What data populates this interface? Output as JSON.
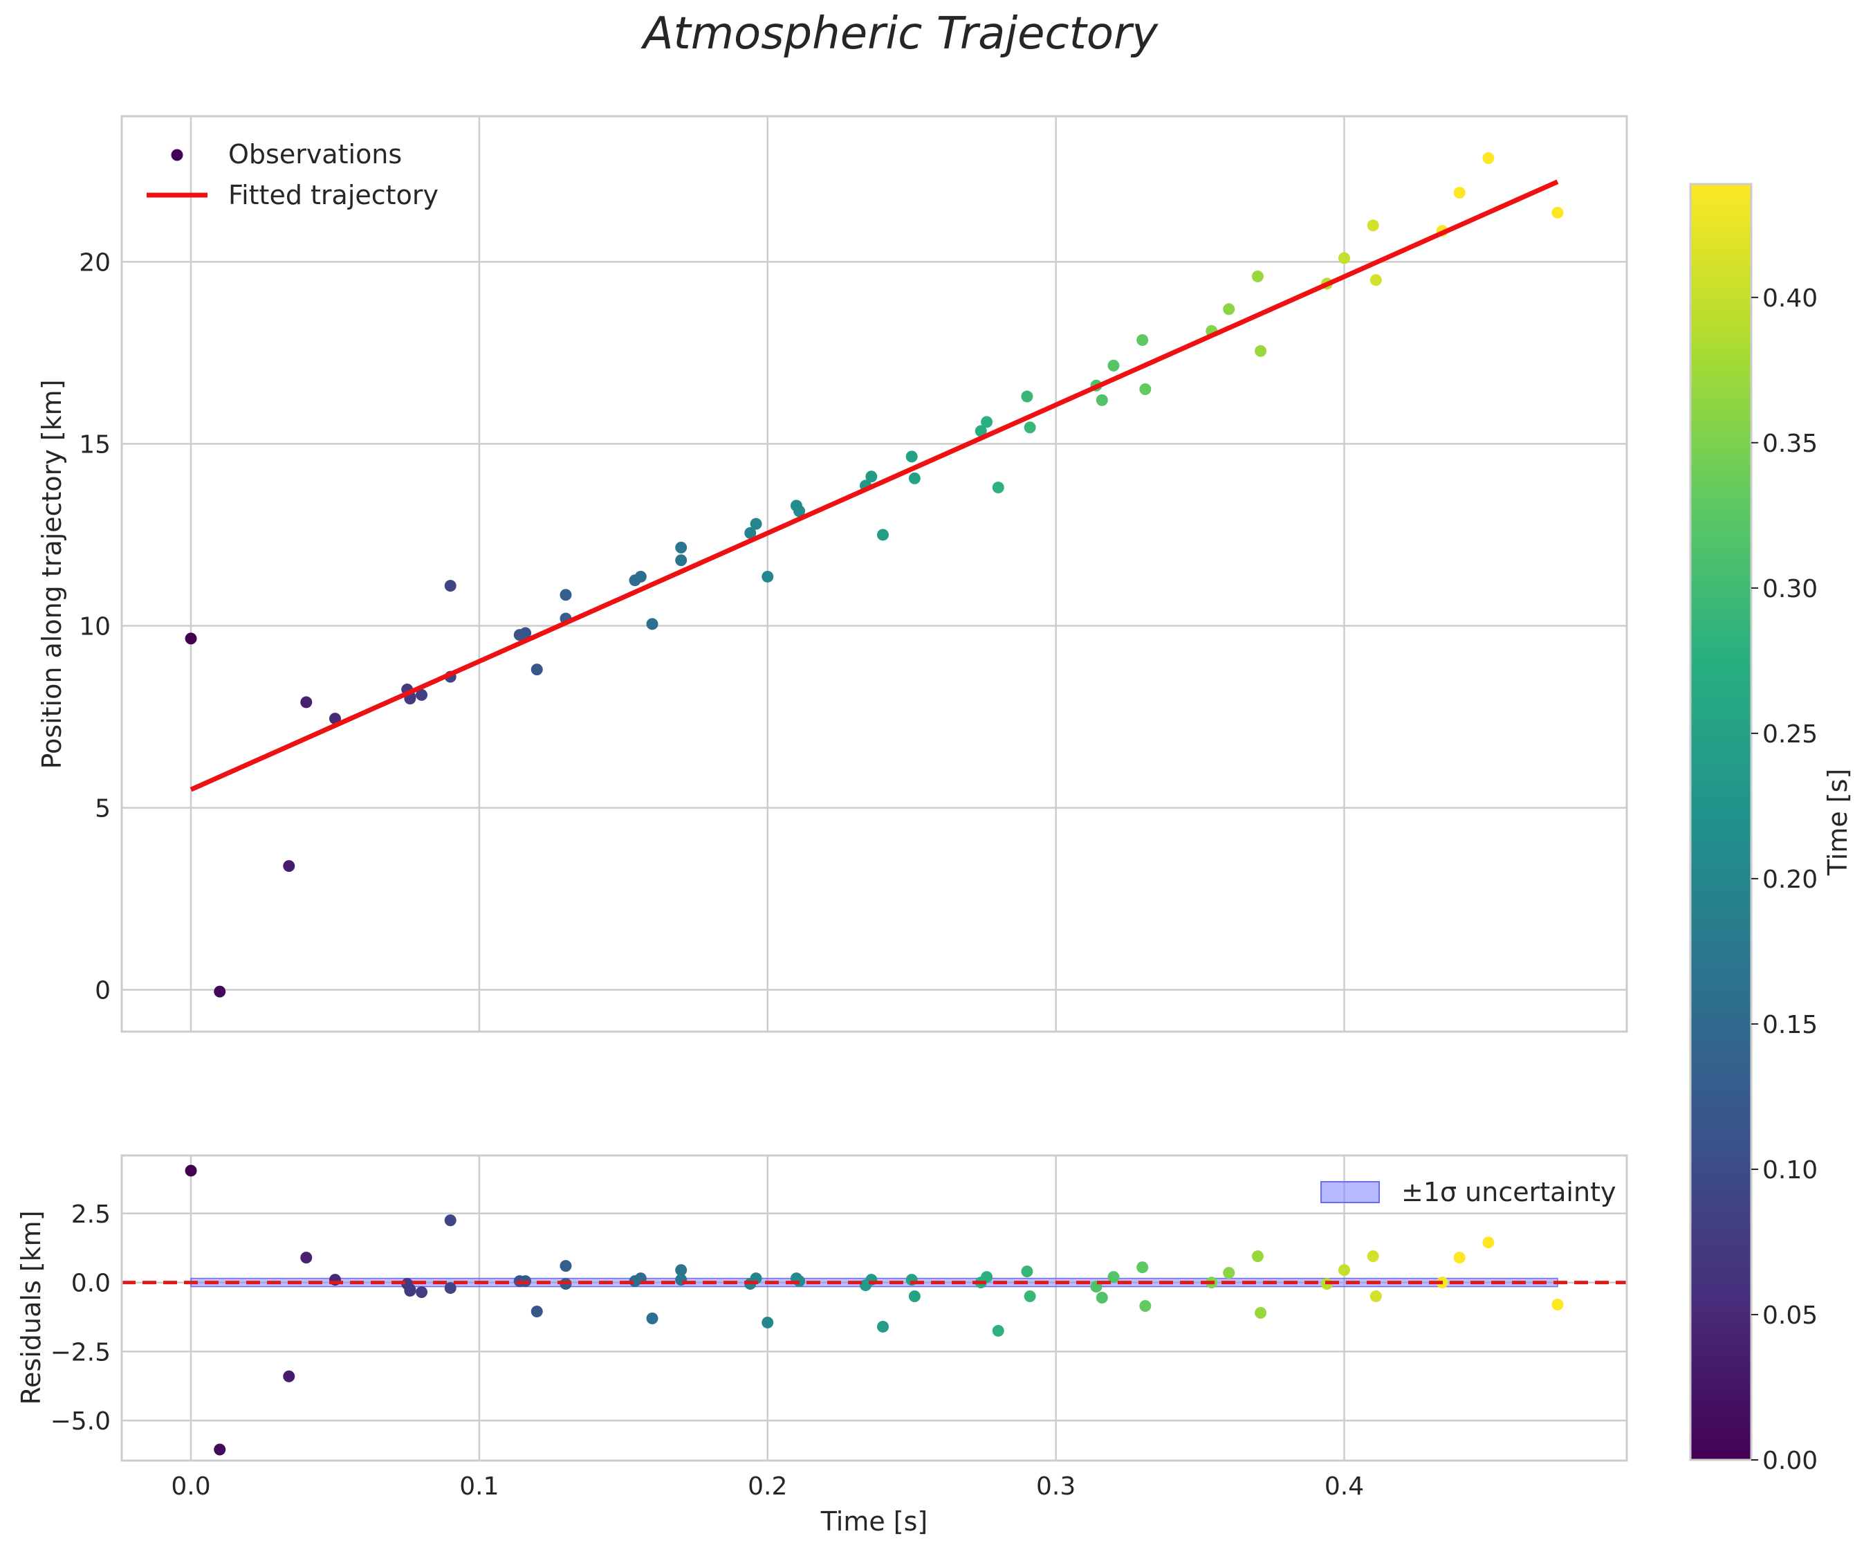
{
  "chart_data": {
    "type": "scatter",
    "title": "Atmospheric Trajectory",
    "colormap": "viridis",
    "observations": {
      "t": [
        0.0,
        0.01,
        0.034,
        0.04,
        0.05,
        0.075,
        0.076,
        0.076,
        0.08,
        0.09,
        0.09,
        0.114,
        0.116,
        0.12,
        0.13,
        0.13,
        0.154,
        0.156,
        0.16,
        0.17,
        0.17,
        0.194,
        0.196,
        0.2,
        0.21,
        0.211,
        0.234,
        0.236,
        0.24,
        0.25,
        0.251,
        0.274,
        0.276,
        0.28,
        0.29,
        0.291,
        0.314,
        0.316,
        0.32,
        0.33,
        0.331,
        0.354,
        0.36,
        0.37,
        0.371,
        0.394,
        0.4,
        0.41,
        0.411,
        0.434,
        0.44,
        0.45,
        0.474
      ],
      "position": [
        9.65,
        -0.05,
        3.4,
        7.9,
        7.45,
        8.25,
        8.05,
        8.0,
        8.1,
        11.1,
        8.6,
        9.75,
        9.8,
        8.8,
        10.85,
        10.2,
        11.25,
        11.35,
        10.05,
        12.15,
        11.8,
        12.55,
        12.8,
        11.35,
        13.3,
        13.15,
        13.85,
        14.1,
        12.5,
        14.65,
        14.05,
        15.35,
        15.6,
        13.8,
        16.3,
        15.45,
        16.6,
        16.2,
        17.15,
        17.85,
        16.5,
        18.1,
        18.7,
        19.6,
        17.55,
        19.4,
        20.1,
        21.0,
        19.5,
        20.85,
        21.9,
        22.85,
        21.35
      ],
      "residuals": [
        4.05,
        -6.05,
        -3.4,
        0.9,
        0.1,
        -0.05,
        -0.25,
        -0.3,
        -0.35,
        2.25,
        -0.2,
        0.05,
        0.05,
        -1.05,
        0.6,
        -0.05,
        0.05,
        0.15,
        -1.3,
        0.45,
        0.1,
        -0.05,
        0.15,
        -1.45,
        0.15,
        0.05,
        -0.1,
        0.1,
        -1.6,
        0.1,
        -0.5,
        0.0,
        0.2,
        -1.75,
        0.4,
        -0.5,
        -0.15,
        -0.55,
        0.2,
        0.55,
        -0.85,
        0.0,
        0.35,
        0.95,
        -1.1,
        -0.05,
        0.45,
        0.95,
        -0.5,
        0.0,
        0.9,
        1.45,
        -0.8
      ]
    },
    "fit_line": {
      "t": [
        0.0,
        0.474
      ],
      "position": [
        5.5,
        22.2
      ]
    },
    "top_panel": {
      "ylabel": "Position along trajectory [km]",
      "xlim": [
        -0.024,
        0.498
      ],
      "ylim": [
        -1.15,
        24.0
      ],
      "yticks": [
        0,
        5,
        10,
        15,
        20
      ],
      "ytick_labels": [
        "0",
        "5",
        "10",
        "15",
        "20"
      ],
      "legend": {
        "observations_label": "Observations",
        "fit_label": "Fitted trajectory",
        "location": "upper-left"
      }
    },
    "bottom_panel": {
      "ylabel": "Residuals [km]",
      "xlabel": "Time [s]",
      "xlim": [
        -0.024,
        0.498
      ],
      "ylim": [
        -6.45,
        4.6
      ],
      "yticks": [
        -5.0,
        -2.5,
        0.0,
        2.5
      ],
      "ytick_labels": [
        "−5.0",
        "−2.5",
        "0.0",
        "2.5"
      ],
      "xticks": [
        0.0,
        0.1,
        0.2,
        0.3,
        0.4
      ],
      "xtick_labels": [
        "0.0",
        "0.1",
        "0.2",
        "0.3",
        "0.4"
      ],
      "band": {
        "t": [
          0.0,
          0.474
        ],
        "half_width": 0.15,
        "color": "#8080ff"
      },
      "zero_line_color": "#e01a1a",
      "legend": {
        "band_label": "±1σ uncertainty",
        "location": "upper-right"
      }
    },
    "colorbar": {
      "label": "Time [s]",
      "range": [
        0.0,
        0.439
      ],
      "ticks": [
        0.0,
        0.05,
        0.1,
        0.15,
        0.2,
        0.25,
        0.3,
        0.35,
        0.4
      ],
      "tick_labels": [
        "0.00",
        "0.05",
        "0.10",
        "0.15",
        "0.20",
        "0.25",
        "0.30",
        "0.35",
        "0.40"
      ]
    },
    "colors": {
      "fit_line": "#ee1111",
      "grid": "#cccccc",
      "text": "#262626"
    }
  }
}
